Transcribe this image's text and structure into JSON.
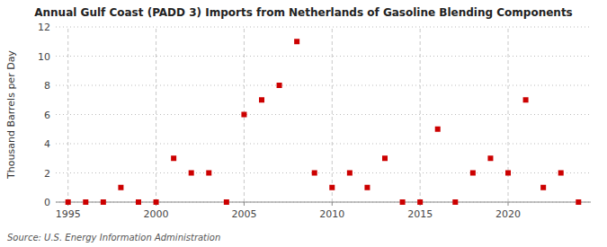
{
  "chart_data": {
    "type": "scatter",
    "title": "Annual Gulf Coast (PADD 3) Imports from Netherlands of Gasoline Blending Components",
    "ylabel": "Thousand Barrels per Day",
    "annotation": "Source: U.S. Energy Information Administration",
    "x": [
      1995,
      1996,
      1997,
      1998,
      1999,
      2000,
      2001,
      2002,
      2003,
      2004,
      2005,
      2006,
      2007,
      2008,
      2009,
      2010,
      2011,
      2012,
      2013,
      2014,
      2015,
      2016,
      2017,
      2018,
      2019,
      2020,
      2021,
      2022,
      2023,
      2024
    ],
    "values": [
      0,
      0,
      0,
      1,
      0,
      0,
      3,
      2,
      2,
      0,
      6,
      7,
      8,
      11,
      2,
      1,
      2,
      1,
      3,
      0,
      0,
      5,
      0,
      2,
      3,
      2,
      7,
      1,
      2,
      0
    ],
    "color": "#cc0000",
    "marker": "square",
    "xlim": [
      1994.3,
      2024.7
    ],
    "ylim": [
      0,
      12
    ],
    "xticks": [
      1995,
      2000,
      2005,
      2010,
      2015,
      2020
    ],
    "yticks": [
      0,
      2,
      4,
      6,
      8,
      10,
      12
    ],
    "grid": true
  }
}
